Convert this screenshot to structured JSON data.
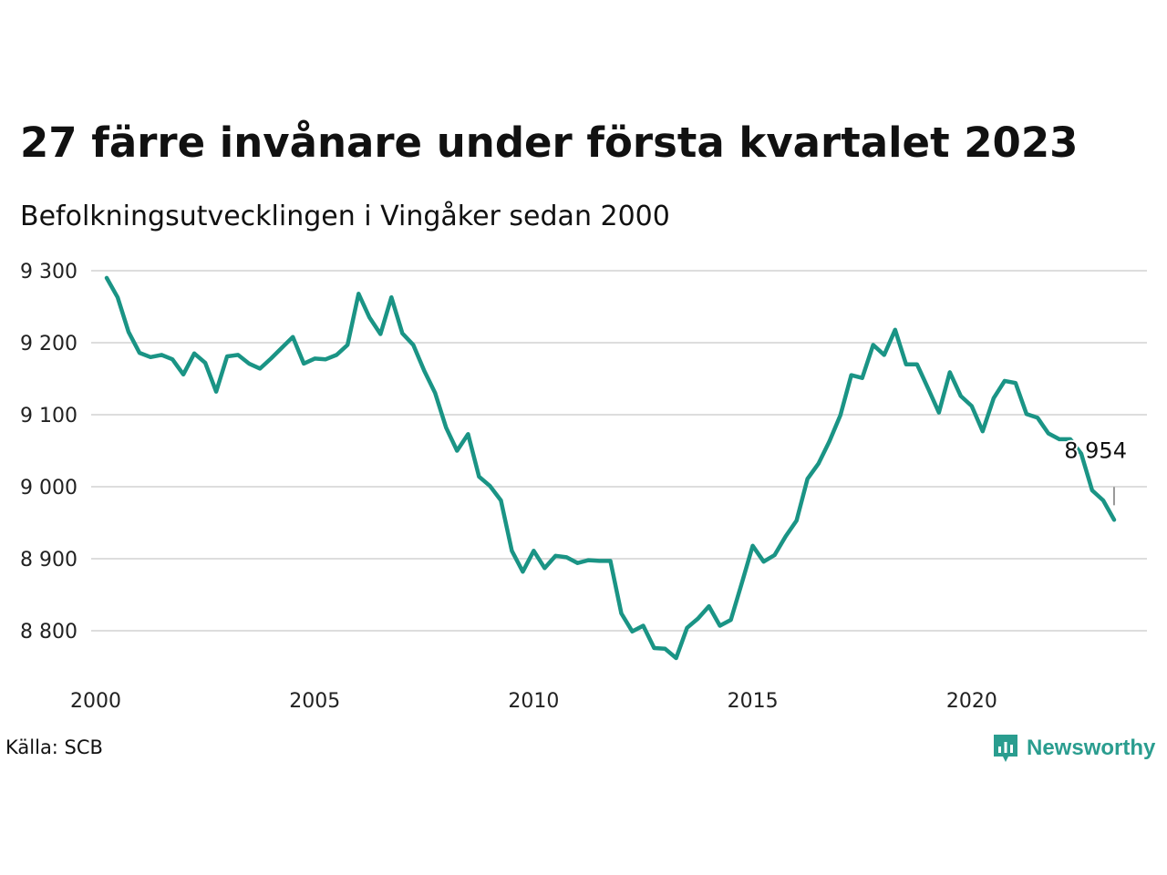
{
  "header": {
    "title": "27 färre invånare under första kvartalet 2023",
    "subtitle": "Befolkningsutvecklingen i Vingåker sedan 2000"
  },
  "footer": {
    "source": "Källa: SCB",
    "brand": "Newsworthy"
  },
  "colors": {
    "line": "#1a9485",
    "grid": "#dddddd",
    "brand": "#2a9d8f"
  },
  "chart_data": {
    "type": "line",
    "title": "27 färre invånare under första kvartalet 2023",
    "subtitle": "Befolkningsutvecklingen i Vingåker sedan 2000",
    "xlabel": "",
    "ylabel": "",
    "x_ticks": [
      "2000",
      "2005",
      "2010",
      "2015",
      "2020"
    ],
    "x_tick_values": [
      2000,
      2005,
      2010,
      2015,
      2020
    ],
    "y_ticks": [
      "8 800",
      "8 900",
      "9 000",
      "9 100",
      "9 200",
      "9 300"
    ],
    "y_tick_values": [
      8800,
      8900,
      9000,
      9100,
      9200,
      9300
    ],
    "xlim": [
      2000,
      2024
    ],
    "ylim": [
      8750,
      9300
    ],
    "grid": true,
    "legend": "none",
    "end_label": "8 954",
    "series": [
      {
        "x": [
          2000.25,
          2000.5,
          2000.75,
          2001.0,
          2001.25,
          2001.5,
          2001.75,
          2002.0,
          2002.25,
          2002.5,
          2002.75,
          2003.0,
          2003.25,
          2003.5,
          2003.75,
          2004.0,
          2004.25,
          2004.5,
          2004.75,
          2005.0,
          2005.25,
          2005.5,
          2005.75,
          2006.0,
          2006.25,
          2006.5,
          2006.75,
          2007.0,
          2007.25,
          2007.5,
          2007.75,
          2008.0,
          2008.25,
          2008.5,
          2008.75,
          2009.0,
          2009.25,
          2009.5,
          2009.75,
          2010.0,
          2010.25,
          2010.5,
          2010.75,
          2011.0,
          2011.25,
          2011.5,
          2011.75,
          2012.0,
          2012.25,
          2012.5,
          2012.75,
          2013.0,
          2013.25,
          2013.5,
          2013.75,
          2014.0,
          2014.25,
          2014.5,
          2014.75,
          2015.0,
          2015.25,
          2015.5,
          2015.75,
          2016.0,
          2016.25,
          2016.5,
          2016.75,
          2017.0,
          2017.25,
          2017.5,
          2017.75,
          2018.0,
          2018.25,
          2018.5,
          2018.75,
          2019.0,
          2019.25,
          2019.5,
          2019.75,
          2020.0,
          2020.25,
          2020.5,
          2020.75,
          2021.0,
          2021.25,
          2021.5,
          2021.75,
          2022.0,
          2022.25,
          2022.5,
          2022.75,
          2023.0,
          2023.25
        ],
        "values": [
          9290,
          9263,
          9215,
          9186,
          9180,
          9183,
          9177,
          9156,
          9185,
          9172,
          9132,
          9181,
          9183,
          9171,
          9164,
          9178,
          9193,
          9208,
          9171,
          9178,
          9177,
          9183,
          9197,
          9268,
          9235,
          9212,
          9263,
          9213,
          9197,
          9161,
          9130,
          9082,
          9050,
          9073,
          9014,
          9001,
          8981,
          8911,
          8882,
          8911,
          8887,
          8904,
          8902,
          8894,
          8898,
          8897,
          8897,
          8824,
          8799,
          8807,
          8776,
          8775,
          8762,
          8804,
          8817,
          8834,
          8807,
          8815,
          8866,
          8918,
          8896,
          8905,
          8931,
          8953,
          9011,
          9032,
          9063,
          9099,
          9155,
          9151,
          9197,
          9183,
          9218,
          9170,
          9170,
          9137,
          9103,
          9159,
          9126,
          9112,
          9077,
          9123,
          9147,
          9144,
          9101,
          9096,
          9074,
          9066,
          9066,
          9046,
          8995,
          8981,
          8954
        ]
      }
    ]
  }
}
